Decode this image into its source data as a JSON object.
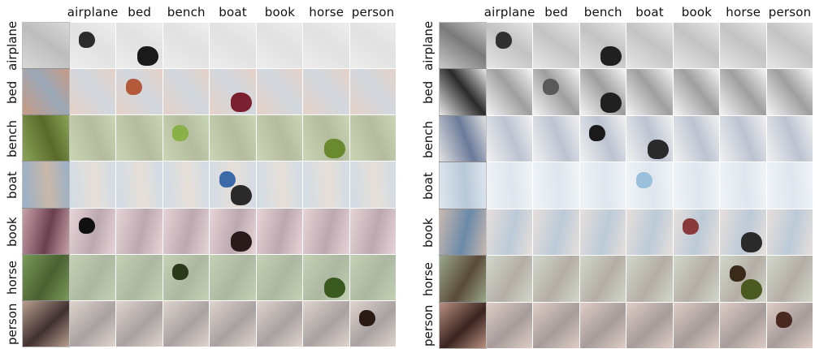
{
  "left_figure": {
    "columns": [
      "airplane",
      "bed",
      "bench",
      "boat",
      "book",
      "horse",
      "person"
    ],
    "rows": [
      {
        "label": "airplane",
        "colors": [
          "#d8d8d8",
          "#bdbdbd"
        ],
        "highlights": [
          {
            "col": 1,
            "color": "#2b2b2b"
          },
          {
            "col": 2,
            "color": "#1a1a1a"
          }
        ]
      },
      {
        "label": "bed",
        "colors": [
          "#c89a84",
          "#9aa8b8"
        ],
        "highlights": [
          {
            "col": 2,
            "color": "#b45a3a"
          },
          {
            "col": 4,
            "color": "#7a2030"
          }
        ]
      },
      {
        "label": "bench",
        "colors": [
          "#8aa45a",
          "#5a6a2a"
        ],
        "highlights": [
          {
            "col": 3,
            "color": "#8ab048"
          },
          {
            "col": 6,
            "color": "#6a8a30"
          }
        ]
      },
      {
        "label": "boat",
        "colors": [
          "#9ab0c8",
          "#c8b8a8"
        ],
        "highlights": [
          {
            "col": 4,
            "color": "#3a6aa8"
          },
          {
            "col": 4,
            "color": "#2a2a2a"
          }
        ]
      },
      {
        "label": "book",
        "colors": [
          "#c8a0a8",
          "#6a4050"
        ],
        "highlights": [
          {
            "col": 1,
            "color": "#101010"
          },
          {
            "col": 4,
            "color": "#2a1a1a"
          }
        ]
      },
      {
        "label": "horse",
        "colors": [
          "#7a9a5a",
          "#4a6030"
        ],
        "highlights": [
          {
            "col": 3,
            "color": "#2a3a1a"
          },
          {
            "col": 6,
            "color": "#3a5a20"
          }
        ]
      },
      {
        "label": "person",
        "colors": [
          "#b8a090",
          "#403030"
        ],
        "highlights": [
          {
            "col": 7,
            "color": "#2a1a14"
          }
        ]
      }
    ]
  },
  "right_figure": {
    "columns": [
      "airplane",
      "bed",
      "bench",
      "boat",
      "book",
      "horse",
      "person"
    ],
    "rows": [
      {
        "label": "airplane",
        "colors": [
          "#c8c8c8",
          "#7a7a7a"
        ],
        "highlights": [
          {
            "col": 1,
            "color": "#303030"
          },
          {
            "col": 3,
            "color": "#202020"
          }
        ]
      },
      {
        "label": "bed",
        "colors": [
          "#e8e8e8",
          "#2a2a2a"
        ],
        "highlights": [
          {
            "col": 2,
            "color": "#5a5a5a"
          },
          {
            "col": 3,
            "color": "#202020"
          }
        ]
      },
      {
        "label": "bench",
        "colors": [
          "#e0e0e0",
          "#6a7a9a"
        ],
        "highlights": [
          {
            "col": 3,
            "color": "#1a1a1a"
          },
          {
            "col": 4,
            "color": "#2a2a2a"
          }
        ]
      },
      {
        "label": "boat",
        "colors": [
          "#dde6ee",
          "#b8c8d8"
        ],
        "highlights": [
          {
            "col": 4,
            "color": "#9ac0dc"
          }
        ]
      },
      {
        "label": "book",
        "colors": [
          "#c8b8b0",
          "#6a8aa8"
        ],
        "highlights": [
          {
            "col": 5,
            "color": "#8a3a3a"
          },
          {
            "col": 6,
            "color": "#2a2a2a"
          }
        ]
      },
      {
        "label": "horse",
        "colors": [
          "#9aa88a",
          "#5a4a3a"
        ],
        "highlights": [
          {
            "col": 6,
            "color": "#3a2a1a"
          },
          {
            "col": 6,
            "color": "#4a5a20"
          }
        ]
      },
      {
        "label": "person",
        "colors": [
          "#b89080",
          "#3a2420"
        ],
        "highlights": [
          {
            "col": 7,
            "color": "#4a2a20"
          }
        ]
      }
    ]
  }
}
